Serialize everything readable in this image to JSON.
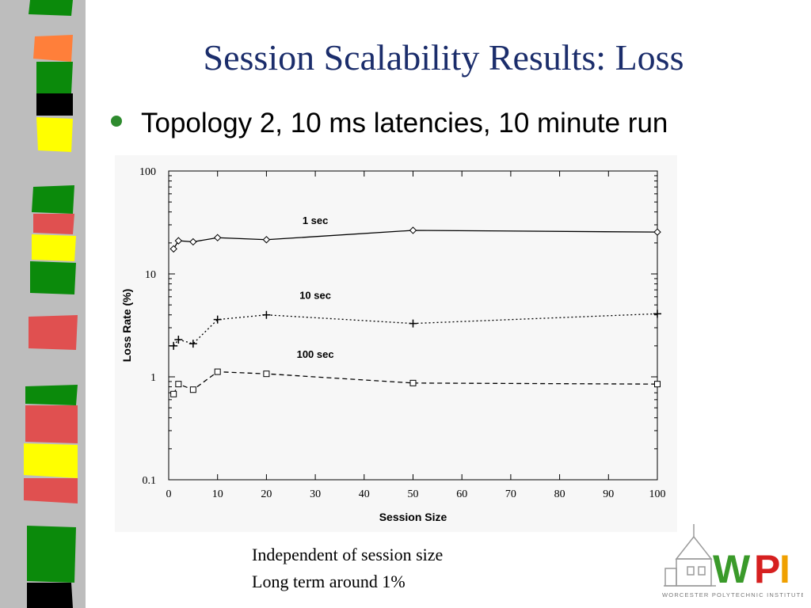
{
  "slide": {
    "title": "Session Scalability Results: Loss",
    "bullet": "Topology 2, 10 ms latencies, 10 minute run",
    "notes": [
      "Independent of session size",
      "Long term around 1%"
    ]
  },
  "logo": {
    "letters": "WPI",
    "tagline": "WORCESTER POLYTECHNIC INSTITUTE",
    "colors": {
      "w": "#3a9a2a",
      "p": "#d62020",
      "i": "#f0a000"
    }
  },
  "colors": {
    "title": "#1b2d6b",
    "bullet": "#2e8b2e"
  },
  "chart_data": {
    "type": "line",
    "xlabel": "Session Size",
    "ylabel": "Loss Rate (%)",
    "xlim": [
      0,
      100
    ],
    "ylim": [
      0.1,
      100
    ],
    "yscale": "log",
    "xticks": [
      0,
      10,
      20,
      30,
      40,
      50,
      60,
      70,
      80,
      90,
      100
    ],
    "yticks": [
      0.1,
      1,
      10,
      100
    ],
    "ytick_labels": [
      "0.1",
      "1",
      "10",
      "100"
    ],
    "series": [
      {
        "name": "1 sec",
        "marker": "diamond",
        "dash": "solid",
        "x": [
          1,
          2,
          5,
          10,
          20,
          50,
          100
        ],
        "y": [
          17.5,
          21.0,
          20.5,
          22.5,
          21.5,
          26.5,
          25.5
        ]
      },
      {
        "name": "10 sec",
        "marker": "plus",
        "dash": "dotted",
        "x": [
          1,
          2,
          5,
          10,
          20,
          50,
          100
        ],
        "y": [
          2.0,
          2.3,
          2.1,
          3.6,
          4.0,
          3.3,
          4.1
        ]
      },
      {
        "name": "100 sec",
        "marker": "square",
        "dash": "dashed",
        "x": [
          1,
          2,
          5,
          10,
          20,
          50,
          100
        ],
        "y": [
          0.68,
          0.85,
          0.75,
          1.12,
          1.07,
          0.87,
          0.85
        ]
      }
    ]
  }
}
